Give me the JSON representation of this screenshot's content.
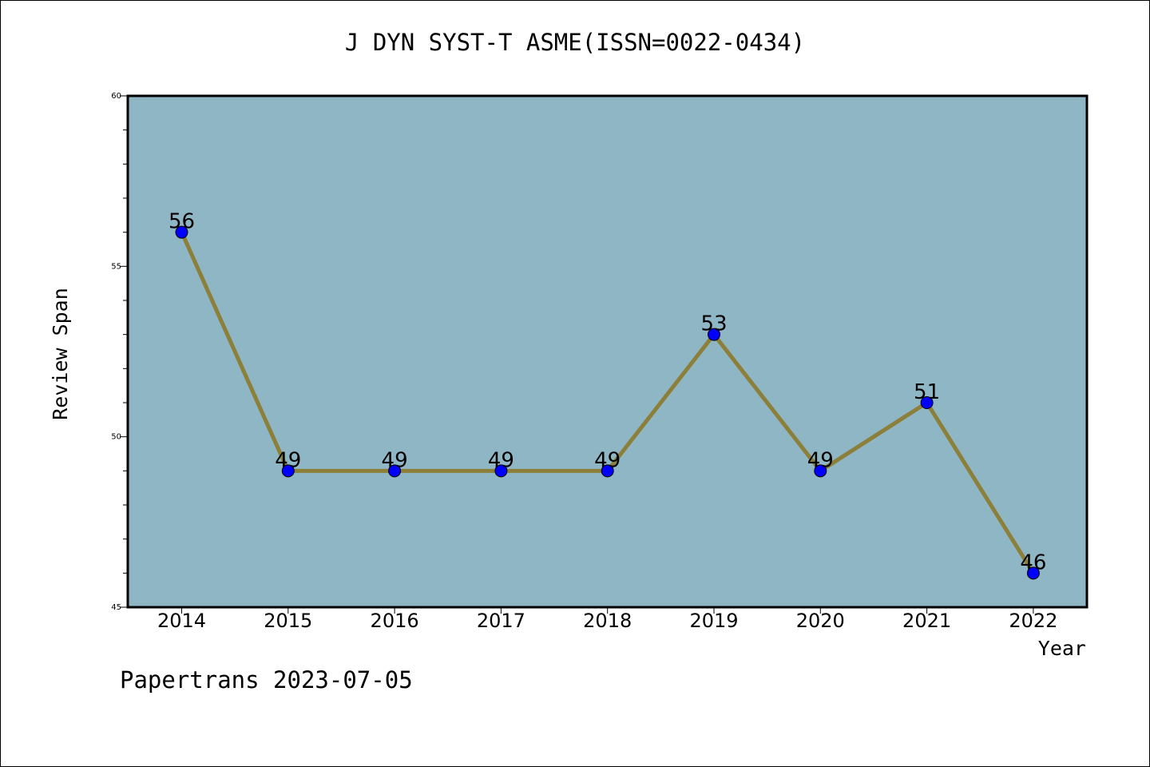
{
  "chart_data": {
    "type": "line",
    "title": "J DYN SYST-T ASME(ISSN=0022-0434)",
    "xlabel": "Year",
    "ylabel": "Review Span",
    "categories": [
      "2014",
      "2015",
      "2016",
      "2017",
      "2018",
      "2019",
      "2020",
      "2021",
      "2022"
    ],
    "series": [
      {
        "values": [
          56,
          49,
          49,
          49,
          49,
          53,
          49,
          51,
          46
        ]
      }
    ],
    "data_labels": [
      "56",
      "49",
      "49",
      "49",
      "49",
      "53",
      "49",
      "51",
      "46"
    ],
    "ylim": [
      45,
      60
    ],
    "yticks": [
      "45",
      "50",
      "55",
      "60"
    ],
    "grid": false,
    "colors": {
      "plot_background": "#8fb6c4",
      "line": "#8c7f3a",
      "marker": "#0000ff"
    }
  },
  "footer": "Papertrans 2023-07-05"
}
